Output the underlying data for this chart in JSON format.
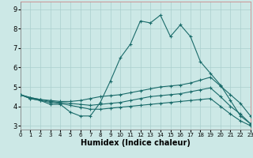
{
  "xlabel": "Humidex (Indice chaleur)",
  "xlim": [
    0,
    23
  ],
  "ylim": [
    2.8,
    9.4
  ],
  "yticks": [
    3,
    4,
    5,
    6,
    7,
    8,
    9
  ],
  "xticks": [
    0,
    1,
    2,
    3,
    4,
    5,
    6,
    7,
    8,
    9,
    10,
    11,
    12,
    13,
    14,
    15,
    16,
    17,
    18,
    19,
    20,
    21,
    22,
    23
  ],
  "bg_color": "#cce8e6",
  "grid_color": "#aacfcd",
  "line_color": "#1a6b6a",
  "line1_x": [
    0,
    1,
    2,
    3,
    4,
    5,
    6,
    7,
    8,
    9,
    10,
    11,
    12,
    13,
    14,
    15,
    16,
    17,
    18,
    19,
    20,
    21,
    22,
    23
  ],
  "line1_y": [
    4.6,
    4.4,
    4.3,
    4.1,
    4.1,
    3.7,
    3.5,
    3.5,
    4.2,
    5.3,
    6.5,
    7.2,
    8.4,
    8.3,
    8.7,
    7.6,
    8.2,
    7.6,
    6.3,
    5.7,
    5.1,
    4.3,
    3.5,
    3.1
  ],
  "line2_x": [
    0,
    1,
    2,
    3,
    4,
    5,
    6,
    7,
    8,
    9,
    10,
    11,
    12,
    13,
    14,
    15,
    16,
    17,
    18,
    19,
    20,
    21,
    22,
    23
  ],
  "line2_y": [
    4.6,
    4.45,
    4.35,
    4.3,
    4.25,
    4.25,
    4.3,
    4.4,
    4.5,
    4.55,
    4.6,
    4.7,
    4.8,
    4.9,
    5.0,
    5.05,
    5.1,
    5.2,
    5.35,
    5.5,
    5.05,
    4.6,
    4.15,
    3.5
  ],
  "line3_x": [
    0,
    1,
    2,
    3,
    4,
    5,
    6,
    7,
    8,
    9,
    10,
    11,
    12,
    13,
    14,
    15,
    16,
    17,
    18,
    19,
    20,
    21,
    22,
    23
  ],
  "line3_y": [
    4.6,
    4.45,
    4.35,
    4.25,
    4.2,
    4.15,
    4.1,
    4.05,
    4.1,
    4.15,
    4.2,
    4.3,
    4.4,
    4.5,
    4.55,
    4.6,
    4.65,
    4.75,
    4.85,
    4.95,
    4.5,
    4.0,
    3.6,
    3.1
  ],
  "line4_x": [
    0,
    1,
    2,
    3,
    4,
    5,
    6,
    7,
    8,
    9,
    10,
    11,
    12,
    13,
    14,
    15,
    16,
    17,
    18,
    19,
    20,
    21,
    22,
    23
  ],
  "line4_y": [
    4.6,
    4.4,
    4.3,
    4.2,
    4.15,
    4.05,
    3.95,
    3.85,
    3.85,
    3.9,
    3.95,
    4.0,
    4.05,
    4.1,
    4.15,
    4.2,
    4.25,
    4.3,
    4.35,
    4.4,
    4.0,
    3.6,
    3.25,
    3.0
  ]
}
